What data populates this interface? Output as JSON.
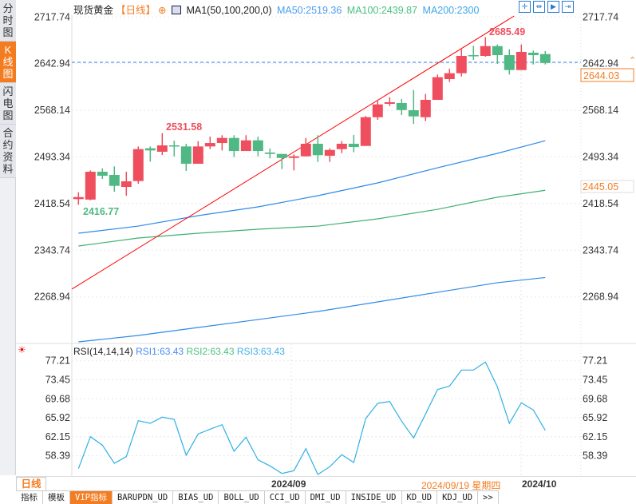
{
  "sidebar": {
    "tabs": [
      {
        "label": "分时图",
        "active": false
      },
      {
        "label": "K线图",
        "active": true
      },
      {
        "label": "闪电图",
        "active": false
      },
      {
        "label": "合约资料",
        "active": false
      }
    ]
  },
  "header": {
    "symbol": "现货黄金",
    "period": "【日线】",
    "indicator": "MA1(50,100,200,0)",
    "ma50": "MA50:2519.36",
    "ma100": "MA100:2439.87",
    "ma200": "MA200:2300"
  },
  "toolbar_icons": [
    "crosshair-icon",
    "zoom-range-icon",
    "play-icon",
    "go-end-icon"
  ],
  "rsi_header": {
    "name": "RSI(14,14,14)",
    "rsi1": "RSI1:63.43",
    "rsi2": "RSI2:63.43",
    "rsi3": "RSI3:63.43"
  },
  "colors": {
    "up": "#ee4e5e",
    "down": "#4fb884",
    "ma50": "#2f8ae8",
    "ma100": "#3fb070",
    "ma200": "#2f8ae8",
    "rsi": "#2fb0e6",
    "trendline": "#ff0000",
    "accent": "#f47c20"
  },
  "chart_data": [
    {
      "type": "candlestick",
      "title": "现货黄金 日线",
      "y_ticks": [
        "2717.74",
        "2642.94",
        "2568.14",
        "2493.34",
        "2418.54",
        "2343.74",
        "2268.94"
      ],
      "ylim": [
        2200,
        2720
      ],
      "annotations": {
        "high_label": "2531.58",
        "low_label": "2416.77",
        "peak_label": "2685.49",
        "current_price": "2644.03",
        "axis_marker": "2445.05"
      },
      "ohlc": [
        [
          2425.7,
          2436.7,
          2416.8,
          2429.0
        ],
        [
          2425.0,
          2471.8,
          2423.9,
          2469.6
        ],
        [
          2469.6,
          2475.1,
          2458.1,
          2463.2
        ],
        [
          2464.5,
          2478.2,
          2437.6,
          2447.0
        ],
        [
          2445.3,
          2469.6,
          2431.2,
          2454.3
        ],
        [
          2454.7,
          2510.2,
          2450.4,
          2505.9
        ],
        [
          2507.2,
          2510.2,
          2485.9,
          2503.8
        ],
        [
          2501.7,
          2531.6,
          2496.5,
          2511.9
        ],
        [
          2511.9,
          2519.6,
          2494.0,
          2510.6
        ],
        [
          2510.2,
          2514.5,
          2470.9,
          2482.4
        ],
        [
          2482.4,
          2518.7,
          2482.4,
          2510.2
        ],
        [
          2510.2,
          2526.0,
          2505.9,
          2515.7
        ],
        [
          2515.7,
          2528.2,
          2503.8,
          2523.8
        ],
        [
          2523.8,
          2528.2,
          2493.1,
          2502.9
        ],
        [
          2502.9,
          2528.2,
          2502.9,
          2520.0
        ],
        [
          2520.0,
          2526.0,
          2494.4,
          2502.9
        ],
        [
          2500.4,
          2506.8,
          2491.0,
          2498.2
        ],
        [
          2498.2,
          2498.2,
          2473.9,
          2491.8
        ],
        [
          2491.8,
          2497.4,
          2471.8,
          2494.4
        ],
        [
          2494.4,
          2523.8,
          2494.0,
          2514.5
        ],
        [
          2514.5,
          2528.2,
          2485.4,
          2496.2
        ],
        [
          2495.3,
          2507.2,
          2485.4,
          2504.6
        ],
        [
          2505.9,
          2518.7,
          2499.5,
          2514.5
        ],
        [
          2514.5,
          2528.6,
          2500.8,
          2509.3
        ],
        [
          2511.0,
          2558.9,
          2511.0,
          2557.1
        ],
        [
          2557.1,
          2584.9,
          2552.9,
          2577.6
        ],
        [
          2578.5,
          2589.1,
          2575.0,
          2581.1
        ],
        [
          2579.8,
          2586.2,
          2560.6,
          2568.6
        ],
        [
          2568.3,
          2600.7,
          2546.5,
          2558.4
        ],
        [
          2557.1,
          2594.3,
          2550.7,
          2584.9
        ],
        [
          2584.9,
          2625.5,
          2584.9,
          2621.2
        ],
        [
          2618.2,
          2634.9,
          2613.5,
          2627.6
        ],
        [
          2627.6,
          2666.0,
          2622.4,
          2655.4
        ],
        [
          2656.6,
          2671.6,
          2649.0,
          2655.7
        ],
        [
          2655.4,
          2685.5,
          2654.1,
          2671.1
        ],
        [
          2671.1,
          2673.7,
          2642.6,
          2656.6
        ],
        [
          2656.6,
          2666.0,
          2625.5,
          2632.7
        ],
        [
          2632.7,
          2673.7,
          2632.7,
          2661.8
        ],
        [
          2660.5,
          2663.9,
          2641.7,
          2656.6
        ],
        [
          2658.3,
          2663.0,
          2641.7,
          2644.03
        ]
      ],
      "ma_sample_index": [
        0,
        5,
        10,
        15,
        20,
        25,
        30,
        35,
        39
      ],
      "series": [
        {
          "name": "MA50",
          "values": [
            2371.0,
            2382.5,
            2399.2,
            2413.3,
            2431.2,
            2451.7,
            2476.0,
            2499.1,
            2519.36
          ]
        },
        {
          "name": "MA100",
          "values": [
            2350.5,
            2363.3,
            2371.0,
            2377.4,
            2382.5,
            2394.1,
            2409.4,
            2428.8,
            2439.87
          ]
        },
        {
          "name": "MA200",
          "values": [
            2196.8,
            2207.1,
            2219.9,
            2232.6,
            2245.5,
            2260.9,
            2276.3,
            2291.7,
            2300
          ]
        }
      ],
      "trendline": {
        "from": [
          -0.55,
          2281.4
        ],
        "to": [
          36.4,
          2719.4
        ]
      }
    },
    {
      "type": "line",
      "title": "RSI(14,14,14)",
      "y_ticks": [
        "77.21",
        "73.45",
        "69.68",
        "65.92",
        "62.15",
        "58.39"
      ],
      "series": [
        {
          "name": "RSI1",
          "values": [
            55.85,
            62.18,
            60.5,
            56.91,
            58.23,
            65.35,
            64.82,
            66.04,
            65.61,
            58.5,
            62.72,
            63.67,
            64.55,
            59.29,
            62.08,
            57.59,
            56.39,
            54.9,
            55.44,
            59.81,
            54.7,
            56.23,
            58.61,
            57.07,
            65.77,
            68.78,
            69.14,
            65.25,
            61.93,
            66.67,
            71.51,
            72.21,
            75.37,
            75.37,
            76.96,
            72.05,
            64.82,
            68.89,
            67.47,
            63.43
          ]
        }
      ]
    }
  ],
  "x_axis": {
    "labels": [
      "2024/09",
      "2024/10"
    ],
    "cursor_date": "2024/09/19 星期四"
  },
  "timeframe": "日线 ▲",
  "tabs": [
    {
      "label": "指标"
    },
    {
      "label": "模板"
    },
    {
      "label": "VIP指标",
      "active": true
    },
    {
      "label": "BARUPDN_UD"
    },
    {
      "label": "BIAS_UD"
    },
    {
      "label": "BOLL_UD"
    },
    {
      "label": "CCI_UD"
    },
    {
      "label": "DMI_UD"
    },
    {
      "label": "INSIDE_UD"
    },
    {
      "label": "KD_UD"
    },
    {
      "label": "KDJ_UD"
    },
    {
      "label": ">>"
    }
  ]
}
